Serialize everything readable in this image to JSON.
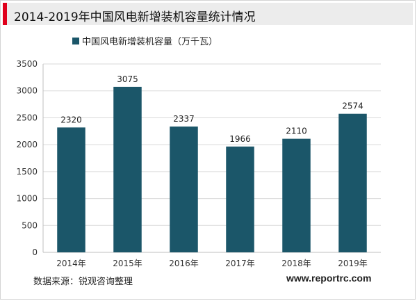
{
  "header": {
    "title": "2014-2019年中国风电新增装机容量统计情况"
  },
  "chart_data": {
    "type": "bar",
    "categories": [
      "2014年",
      "2015年",
      "2016年",
      "2017年",
      "2018年",
      "2019年"
    ],
    "series": [
      {
        "name": "中国风电新增装机容量（万千瓦）",
        "values": [
          2320,
          3075,
          2337,
          1966,
          2110,
          2574
        ],
        "color": "#1b5669"
      }
    ],
    "title": "",
    "xlabel": "",
    "ylabel": "",
    "ylim": [
      0,
      3500
    ],
    "yticks": [
      0,
      500,
      1000,
      1500,
      2000,
      2500,
      3000,
      3500
    ],
    "grid": true,
    "legend": "top-left",
    "data_labels": true
  },
  "footer": {
    "source": "数据来源：锐观咨询整理",
    "website": "www.reportrc.com"
  }
}
